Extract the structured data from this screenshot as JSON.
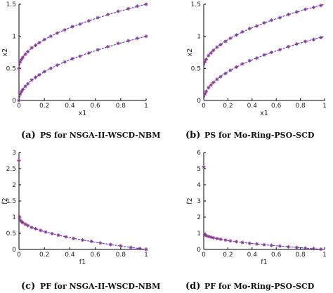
{
  "chart_data": [
    {
      "type": "scatter",
      "caption_letter": "(a)",
      "caption": "PS for NSGA-II-WSCD-NBM",
      "xlabel": "x1",
      "ylabel": "x2",
      "xlim": [
        0,
        1
      ],
      "ylim": [
        0,
        1.5
      ],
      "xticks": [
        "0",
        "0.2",
        "0.4",
        "0.6",
        "0.8",
        "1"
      ],
      "yticks": [
        "0",
        "0.5",
        "1",
        "1.5"
      ],
      "series": [
        {
          "x": [
            0,
            0.01,
            0.02,
            0.03,
            0.05,
            0.07,
            0.1,
            0.13,
            0.16,
            0.2,
            0.25,
            0.3,
            0.36,
            0.42,
            0.48,
            0.55,
            0.62,
            0.7,
            0.78,
            0.86,
            0.93,
            1.0
          ],
          "y": [
            0.5,
            0.6,
            0.64,
            0.67,
            0.72,
            0.76,
            0.82,
            0.86,
            0.9,
            0.95,
            1.0,
            1.05,
            1.1,
            1.15,
            1.19,
            1.24,
            1.29,
            1.34,
            1.39,
            1.43,
            1.47,
            1.5
          ]
        },
        {
          "x": [
            0,
            0.01,
            0.02,
            0.03,
            0.05,
            0.07,
            0.1,
            0.13,
            0.16,
            0.2,
            0.25,
            0.3,
            0.36,
            0.42,
            0.48,
            0.55,
            0.62,
            0.7,
            0.78,
            0.86,
            0.93,
            1.0
          ],
          "y": [
            0.0,
            0.1,
            0.14,
            0.17,
            0.22,
            0.26,
            0.32,
            0.36,
            0.4,
            0.45,
            0.5,
            0.55,
            0.6,
            0.65,
            0.69,
            0.74,
            0.79,
            0.84,
            0.89,
            0.93,
            0.97,
            1.0
          ]
        }
      ],
      "true_front": "sqrt"
    },
    {
      "type": "scatter",
      "caption_letter": "(b)",
      "caption": "PS for Mo-Ring-PSO-SCD",
      "xlabel": "x1",
      "ylabel": "x2",
      "xlim": [
        0,
        1
      ],
      "ylim": [
        0,
        1.5
      ],
      "xticks": [
        "0",
        "0.2",
        "0.4",
        "0.6",
        "0.8",
        "1"
      ],
      "yticks": [
        "0",
        "0.5",
        "1",
        "1.5"
      ],
      "series": [
        {
          "x": [
            0.01,
            0.02,
            0.04,
            0.06,
            0.08,
            0.11,
            0.14,
            0.18,
            0.22,
            0.27,
            0.32,
            0.38,
            0.44,
            0.5,
            0.56,
            0.63,
            0.7,
            0.77,
            0.84,
            0.91,
            0.97
          ],
          "y": [
            0.6,
            0.64,
            0.7,
            0.74,
            0.78,
            0.83,
            0.87,
            0.92,
            0.97,
            1.02,
            1.07,
            1.12,
            1.16,
            1.21,
            1.25,
            1.29,
            1.34,
            1.38,
            1.42,
            1.45,
            1.48
          ]
        },
        {
          "x": [
            0.01,
            0.02,
            0.04,
            0.06,
            0.08,
            0.11,
            0.14,
            0.18,
            0.22,
            0.27,
            0.32,
            0.38,
            0.44,
            0.5,
            0.56,
            0.63,
            0.7,
            0.77,
            0.84,
            0.91,
            0.97
          ],
          "y": [
            0.1,
            0.14,
            0.2,
            0.24,
            0.28,
            0.33,
            0.37,
            0.42,
            0.47,
            0.52,
            0.57,
            0.62,
            0.66,
            0.71,
            0.75,
            0.79,
            0.84,
            0.88,
            0.92,
            0.95,
            0.98
          ]
        }
      ],
      "true_front": "sqrt"
    },
    {
      "type": "scatter",
      "caption_letter": "(c)",
      "caption": "PF for NSGA-II-WSCD-NBM",
      "xlabel": "f1",
      "ylabel": "f2",
      "xlim": [
        0,
        1
      ],
      "ylim": [
        0,
        3
      ],
      "xticks": [
        "0",
        "0.2",
        "0.4",
        "0.6",
        "0.8",
        "1"
      ],
      "yticks": [
        "0",
        "0.5",
        "1",
        "1.5",
        "2",
        "2.5",
        "3"
      ],
      "series": [
        {
          "x": [
            0,
            0.005,
            0.01,
            0.02,
            0.03,
            0.05,
            0.07,
            0.1,
            0.13,
            0.17,
            0.21,
            0.26,
            0.31,
            0.37,
            0.43,
            0.5,
            0.57,
            0.64,
            0.72,
            0.8,
            0.88,
            0.95,
            1.0
          ],
          "y": [
            2.75,
            1.0,
            0.9,
            0.86,
            0.83,
            0.78,
            0.74,
            0.68,
            0.64,
            0.59,
            0.54,
            0.49,
            0.44,
            0.39,
            0.34,
            0.29,
            0.25,
            0.2,
            0.15,
            0.11,
            0.06,
            0.03,
            0.0
          ]
        }
      ],
      "true_front": "one_minus_sqrt"
    },
    {
      "type": "scatter",
      "caption_letter": "(d)",
      "caption": "PF for Mo-Ring-PSO-SCD",
      "xlabel": "f1",
      "ylabel": "f2",
      "xlim": [
        0,
        1
      ],
      "ylim": [
        0,
        6
      ],
      "xticks": [
        "0",
        "0.2",
        "0.4",
        "0.6",
        "0.8",
        "1"
      ],
      "yticks": [
        "0",
        "1",
        "2",
        "3",
        "4",
        "5",
        "6"
      ],
      "series": [
        {
          "x": [
            0.0,
            0.01,
            0.02,
            0.04,
            0.06,
            0.08,
            0.11,
            0.14,
            0.18,
            0.22,
            0.27,
            0.32,
            0.38,
            0.44,
            0.5,
            0.56,
            0.63,
            0.7,
            0.77,
            0.84,
            0.91,
            0.97
          ],
          "y": [
            5.1,
            0.9,
            0.86,
            0.8,
            0.76,
            0.72,
            0.67,
            0.63,
            0.58,
            0.53,
            0.48,
            0.43,
            0.38,
            0.34,
            0.29,
            0.25,
            0.21,
            0.16,
            0.12,
            0.08,
            0.05,
            0.02
          ]
        }
      ],
      "true_front": "one_minus_sqrt"
    }
  ]
}
